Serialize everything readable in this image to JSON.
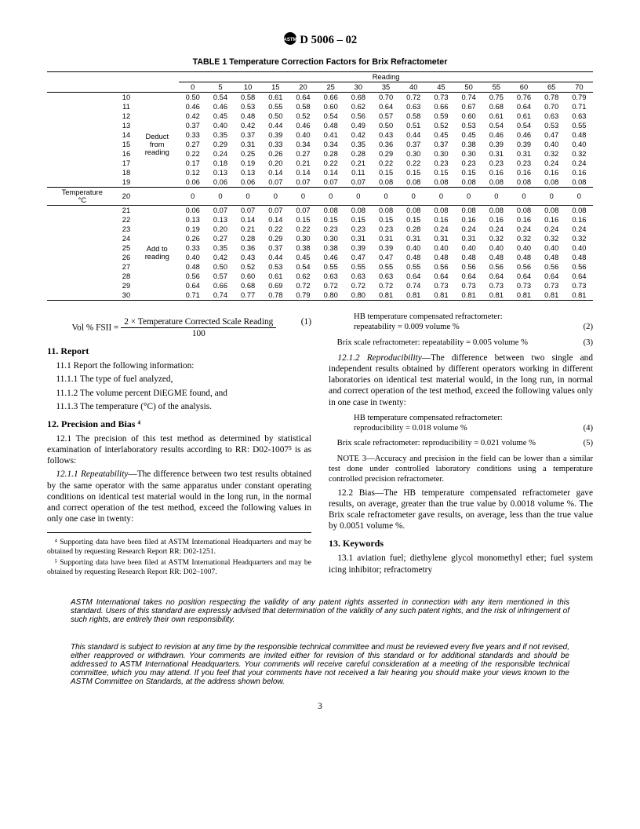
{
  "header": {
    "designation": "D 5006 – 02"
  },
  "table": {
    "title": "TABLE 1  Temperature Correction Factors for Brix Refractometer",
    "reading_label": "Reading",
    "temp_label": "Temperature °C",
    "deduct_label": "Deduct from reading",
    "add_label": "Add to reading",
    "col_headers": [
      "0",
      "5",
      "10",
      "15",
      "20",
      "25",
      "30",
      "35",
      "40",
      "45",
      "50",
      "55",
      "60",
      "65",
      "70"
    ],
    "rows_top": [
      {
        "t": "10",
        "v": [
          "0.50",
          "0.54",
          "0.58",
          "0.61",
          "0.64",
          "0.66",
          "0.68",
          "0.70",
          "0.72",
          "0.73",
          "0.74",
          "0.75",
          "0.76",
          "0.78",
          "0.79"
        ]
      },
      {
        "t": "11",
        "v": [
          "0.46",
          "0.46",
          "0.53",
          "0.55",
          "0.58",
          "0.60",
          "0.62",
          "0.64",
          "0.63",
          "0.66",
          "0.67",
          "0.68",
          "0.64",
          "0.70",
          "0.71"
        ]
      },
      {
        "t": "12",
        "v": [
          "0.42",
          "0.45",
          "0.48",
          "0.50",
          "0.52",
          "0.54",
          "0.56",
          "0.57",
          "0.58",
          "0.59",
          "0.60",
          "0.61",
          "0.61",
          "0.63",
          "0.63"
        ]
      },
      {
        "t": "13",
        "v": [
          "0.37",
          "0.40",
          "0.42",
          "0.44",
          "0.46",
          "0.48",
          "0.49",
          "0.50",
          "0.51",
          "0.52",
          "0.53",
          "0.54",
          "0.54",
          "0.53",
          "0.55"
        ]
      },
      {
        "t": "14",
        "v": [
          "0.33",
          "0.35",
          "0.37",
          "0.39",
          "0.40",
          "0.41",
          "0.42",
          "0.43",
          "0.44",
          "0.45",
          "0.45",
          "0.46",
          "0.46",
          "0.47",
          "0.48"
        ]
      },
      {
        "t": "15",
        "v": [
          "0.27",
          "0.29",
          "0.31",
          "0.33",
          "0.34",
          "0.34",
          "0.35",
          "0.36",
          "0.37",
          "0.37",
          "0.38",
          "0.39",
          "0.39",
          "0.40",
          "0.40"
        ]
      },
      {
        "t": "16",
        "v": [
          "0.22",
          "0.24",
          "0.25",
          "0.26",
          "0.27",
          "0.28",
          "0.28",
          "0.29",
          "0.30",
          "0.30",
          "0.30",
          "0.31",
          "0.31",
          "0.32",
          "0.32"
        ]
      },
      {
        "t": "17",
        "v": [
          "0.17",
          "0.18",
          "0.19",
          "0.20",
          "0.21",
          "0.22",
          "0.21",
          "0.22",
          "0.22",
          "0.23",
          "0.23",
          "0.23",
          "0.23",
          "0.24",
          "0.24"
        ]
      },
      {
        "t": "18",
        "v": [
          "0.12",
          "0.13",
          "0.13",
          "0.14",
          "0.14",
          "0.14",
          "0.11",
          "0.15",
          "0.15",
          "0.15",
          "0.15",
          "0.16",
          "0.16",
          "0.16",
          "0.16"
        ]
      },
      {
        "t": "19",
        "v": [
          "0.06",
          "0.06",
          "0.06",
          "0.07",
          "0.07",
          "0.07",
          "0.07",
          "0.08",
          "0.08",
          "0.08",
          "0.08",
          "0.08",
          "0.08",
          "0.08",
          "0.08"
        ]
      }
    ],
    "row_20": {
      "t": "20",
      "v": [
        "0",
        "0",
        "0",
        "0",
        "0",
        "0",
        "0",
        "0",
        "0",
        "0",
        "0",
        "0",
        "0",
        "0",
        "0"
      ]
    },
    "rows_bot": [
      {
        "t": "21",
        "v": [
          "0.06",
          "0.07",
          "0.07",
          "0.07",
          "0.07",
          "0.08",
          "0.08",
          "0.08",
          "0.08",
          "0.08",
          "0.08",
          "0.08",
          "0.08",
          "0.08",
          "0.08"
        ]
      },
      {
        "t": "22",
        "v": [
          "0.13",
          "0.13",
          "0.14",
          "0.14",
          "0.15",
          "0.15",
          "0.15",
          "0.15",
          "0.15",
          "0.16",
          "0.16",
          "0.16",
          "0.16",
          "0.16",
          "0.16"
        ]
      },
      {
        "t": "23",
        "v": [
          "0.19",
          "0.20",
          "0.21",
          "0.22",
          "0.22",
          "0.23",
          "0.23",
          "0.23",
          "0.28",
          "0.24",
          "0.24",
          "0.24",
          "0.24",
          "0.24",
          "0.24"
        ]
      },
      {
        "t": "24",
        "v": [
          "0.26",
          "0.27",
          "0.28",
          "0.29",
          "0.30",
          "0.30",
          "0.31",
          "0.31",
          "0.31",
          "0.31",
          "0.31",
          "0.32",
          "0.32",
          "0.32",
          "0.32"
        ]
      },
      {
        "t": "25",
        "v": [
          "0.33",
          "0.35",
          "0.36",
          "0.37",
          "0.38",
          "0.38",
          "0.39",
          "0.39",
          "0.40",
          "0.40",
          "0.40",
          "0.40",
          "0.40",
          "0.40",
          "0.40"
        ]
      },
      {
        "t": "26",
        "v": [
          "0.40",
          "0.42",
          "0.43",
          "0.44",
          "0.45",
          "0.46",
          "0.47",
          "0.47",
          "0.48",
          "0.48",
          "0.48",
          "0.48",
          "0.48",
          "0.48",
          "0.48"
        ]
      },
      {
        "t": "27",
        "v": [
          "0.48",
          "0.50",
          "0.52",
          "0.53",
          "0.54",
          "0.55",
          "0.55",
          "0.55",
          "0.55",
          "0.56",
          "0.56",
          "0.56",
          "0.56",
          "0.56",
          "0.56"
        ]
      },
      {
        "t": "28",
        "v": [
          "0.56",
          "0.57",
          "0.60",
          "0.61",
          "0.62",
          "0.63",
          "0.63",
          "0.63",
          "0.64",
          "0.64",
          "0.64",
          "0.64",
          "0.64",
          "0.64",
          "0.64"
        ]
      },
      {
        "t": "29",
        "v": [
          "0.64",
          "0.66",
          "0.68",
          "0.69",
          "0.72",
          "0.72",
          "0.72",
          "0.72",
          "0.74",
          "0.73",
          "0.73",
          "0.73",
          "0.73",
          "0.73",
          "0.73"
        ]
      },
      {
        "t": "30",
        "v": [
          "0.71",
          "0.74",
          "0.77",
          "0.78",
          "0.79",
          "0.80",
          "0.80",
          "0.81",
          "0.81",
          "0.81",
          "0.81",
          "0.81",
          "0.81",
          "0.81",
          "0.81"
        ]
      }
    ]
  },
  "eq1": {
    "lhs": "Vol % FSII =",
    "num": "2 × Temperature Corrected Scale Reading",
    "den": "100",
    "num_label": "(1)"
  },
  "s11": {
    "title": "11. Report",
    "l1": "11.1 Report the following information:",
    "l2": "11.1.1 The type of fuel analyzed,",
    "l3": "11.1.2 The volume percent DiEGME found, and",
    "l4": "11.1.3 The temperature (°C) of the analysis."
  },
  "s12": {
    "title": "12. Precision and Bias ⁴",
    "p1": "12.1 The precision of this test method as determined by statistical examination of interlaboratory results according to RR: D02-1007⁵ is as follows:",
    "p2_head": "12.1.1 Repeatability",
    "p2_body": "—The difference between two test results obtained by the same operator with the same apparatus under constant operating conditions on identical test material would in the long run, in the normal and correct operation of the test method, exceed the following values in only one case in twenty:",
    "eq2a": "HB temperature compensated refractometer:",
    "eq2b": "repeatability = 0.009 volume %",
    "eq2n": "(2)",
    "eq3": "Brix scale refractometer: repeatability = 0.005 volume %",
    "eq3n": "(3)",
    "p3_head": "12.1.2 Reproducibility",
    "p3_body": "—The difference between two single and independent results obtained by different operators working in different laboratories on identical test material would, in the long run, in normal and correct operation of the test method, exceed the following values only in one case in twenty:",
    "eq4a": "HB temperature compensated refractometer:",
    "eq4b": "reproducibility = 0.018 volume %",
    "eq4n": "(4)",
    "eq5": "Brix scale refractometer: reproducibility = 0.021 volume %",
    "eq5n": "(5)",
    "note3": "NOTE 3—Accuracy and precision in the field can be lower than a similar test done under controlled laboratory conditions using a temperature controlled precision refractometer.",
    "bias": "12.2 Bias—The HB temperature compensated refractometer gave results, on average, greater than the true value by 0.0018 volume %. The Brix scale refractometer gave results, on average, less than the true value by 0.0051 volume %."
  },
  "s13": {
    "title": "13. Keywords",
    "p1": "13.1 aviation fuel; diethylene glycol monomethyl ether; fuel system icing inhibitor; refractometry"
  },
  "footnotes": {
    "f4": "⁴ Supporting data have been filed at ASTM International Headquarters and may be obtained by requesting Research Report RR: D02-1251.",
    "f5": "⁵ Supporting data have been filed at ASTM International Headquarters and may be obtained by requesting Research Report RR: D02–1007."
  },
  "legal1": "ASTM International takes no position respecting the validity of any patent rights asserted in connection with any item mentioned in this standard. Users of this standard are expressly advised that determination of the validity of any such patent rights, and the risk of infringement of such rights, are entirely their own responsibility.",
  "legal2": "This standard is subject to revision at any time by the responsible technical committee and must be reviewed every five years and if not revised, either reapproved or withdrawn. Your comments are invited either for revision of this standard or for additional standards and should be addressed to ASTM International Headquarters. Your comments will receive careful consideration at a meeting of the responsible technical committee, which you may attend. If you feel that your comments have not received a fair hearing you should make your views known to the ASTM Committee on Standards, at the address shown below.",
  "pagenum": "3"
}
